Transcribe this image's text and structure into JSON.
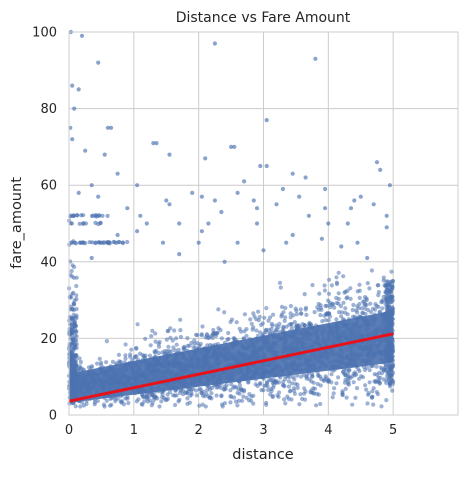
{
  "chart_data": {
    "type": "scatter",
    "title": "Distance vs Fare Amount",
    "xlabel": "distance",
    "ylabel": "fare_amount",
    "xlim": [
      0,
      6
    ],
    "ylim": [
      0,
      100
    ],
    "x_ticks": [
      0,
      1,
      2,
      3,
      4,
      5
    ],
    "y_ticks": [
      0,
      20,
      40,
      60,
      80,
      100
    ],
    "grid": true,
    "point_color": "#4c72b0",
    "fit_color": "#e8111a",
    "regression_line": {
      "x": [
        0,
        5
      ],
      "y": [
        3.6,
        21.2
      ]
    },
    "dense_band": {
      "x_range": [
        0,
        5
      ],
      "center_y": [
        7.0,
        20.5
      ],
      "core_half_width": [
        3.8,
        6.8
      ],
      "outer_half_width": [
        4.8,
        14.0
      ]
    },
    "outliers": [
      {
        "x": 0.03,
        "y": 100
      },
      {
        "x": 0.2,
        "y": 99
      },
      {
        "x": 2.25,
        "y": 97
      },
      {
        "x": 3.8,
        "y": 93
      },
      {
        "x": 0.45,
        "y": 92
      },
      {
        "x": 0.05,
        "y": 86
      },
      {
        "x": 0.15,
        "y": 85
      },
      {
        "x": 0.08,
        "y": 80
      },
      {
        "x": 3.05,
        "y": 77
      },
      {
        "x": 0.02,
        "y": 75
      },
      {
        "x": 0.6,
        "y": 75
      },
      {
        "x": 0.65,
        "y": 75
      },
      {
        "x": 0.05,
        "y": 72
      },
      {
        "x": 1.3,
        "y": 71
      },
      {
        "x": 1.35,
        "y": 71
      },
      {
        "x": 2.5,
        "y": 70
      },
      {
        "x": 2.55,
        "y": 70
      },
      {
        "x": 0.25,
        "y": 69
      },
      {
        "x": 0.55,
        "y": 68
      },
      {
        "x": 1.55,
        "y": 68
      },
      {
        "x": 2.1,
        "y": 67
      },
      {
        "x": 4.75,
        "y": 66
      },
      {
        "x": 2.95,
        "y": 65
      },
      {
        "x": 3.05,
        "y": 65
      },
      {
        "x": 4.8,
        "y": 64
      },
      {
        "x": 0.75,
        "y": 63
      },
      {
        "x": 3.45,
        "y": 63
      },
      {
        "x": 3.65,
        "y": 62
      },
      {
        "x": 2.7,
        "y": 61
      },
      {
        "x": 0.35,
        "y": 60
      },
      {
        "x": 1.05,
        "y": 60
      },
      {
        "x": 4.95,
        "y": 60
      },
      {
        "x": 3.3,
        "y": 59
      },
      {
        "x": 3.95,
        "y": 59
      },
      {
        "x": 0.15,
        "y": 58
      },
      {
        "x": 1.9,
        "y": 58
      },
      {
        "x": 2.6,
        "y": 58
      },
      {
        "x": 0.45,
        "y": 57
      },
      {
        "x": 2.05,
        "y": 57
      },
      {
        "x": 3.55,
        "y": 57
      },
      {
        "x": 4.5,
        "y": 57
      },
      {
        "x": 1.5,
        "y": 56
      },
      {
        "x": 2.25,
        "y": 56
      },
      {
        "x": 2.85,
        "y": 56
      },
      {
        "x": 4.4,
        "y": 56
      },
      {
        "x": 1.55,
        "y": 55
      },
      {
        "x": 3.2,
        "y": 55
      },
      {
        "x": 4.7,
        "y": 55
      },
      {
        "x": 0.9,
        "y": 54
      },
      {
        "x": 2.9,
        "y": 54
      },
      {
        "x": 3.95,
        "y": 54
      },
      {
        "x": 4.35,
        "y": 54
      },
      {
        "x": 2.35,
        "y": 53
      },
      {
        "x": 1.1,
        "y": 52
      },
      {
        "x": 3.7,
        "y": 52
      },
      {
        "x": 4.9,
        "y": 52
      },
      {
        "x": 1.2,
        "y": 50
      },
      {
        "x": 1.7,
        "y": 50
      },
      {
        "x": 2.15,
        "y": 50
      },
      {
        "x": 2.9,
        "y": 50
      },
      {
        "x": 4.0,
        "y": 50
      },
      {
        "x": 4.3,
        "y": 50
      },
      {
        "x": 4.9,
        "y": 49
      },
      {
        "x": 0.75,
        "y": 47
      },
      {
        "x": 1.05,
        "y": 48
      },
      {
        "x": 2.05,
        "y": 48
      },
      {
        "x": 3.45,
        "y": 47
      },
      {
        "x": 3.9,
        "y": 46
      },
      {
        "x": 4.45,
        "y": 45
      },
      {
        "x": 0.5,
        "y": 45
      },
      {
        "x": 0.6,
        "y": 45
      },
      {
        "x": 1.45,
        "y": 45
      },
      {
        "x": 2.0,
        "y": 45
      },
      {
        "x": 2.6,
        "y": 45
      },
      {
        "x": 3.35,
        "y": 45
      },
      {
        "x": 3.0,
        "y": 43
      },
      {
        "x": 1.7,
        "y": 42
      },
      {
        "x": 4.2,
        "y": 44
      },
      {
        "x": 0.35,
        "y": 41
      },
      {
        "x": 4.6,
        "y": 41
      },
      {
        "x": 2.4,
        "y": 40
      }
    ],
    "fixed_fare_stripes": [
      {
        "y": 45,
        "x_range": [
          0,
          0.9
        ],
        "count": 32
      },
      {
        "y": 52,
        "x_range": [
          0,
          0.6
        ],
        "count": 18
      },
      {
        "y": 50,
        "x_range": [
          0,
          0.5
        ],
        "count": 10
      }
    ]
  }
}
